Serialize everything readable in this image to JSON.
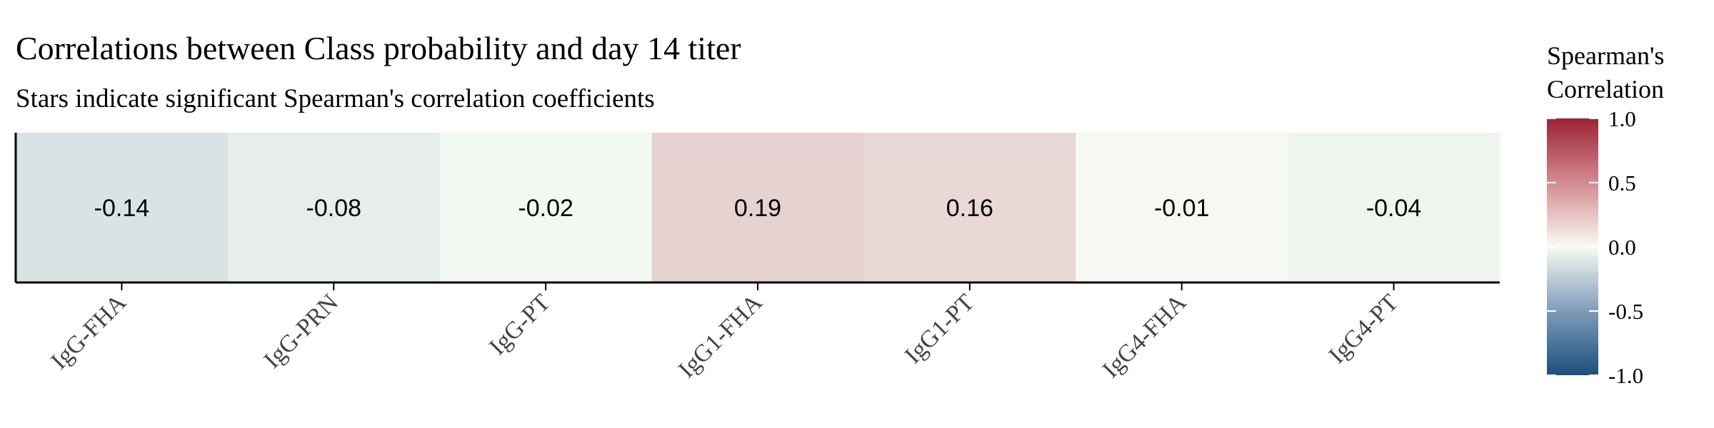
{
  "chart_data": {
    "type": "heatmap",
    "title": "Correlations between Class probability and day 14 titer",
    "subtitle": "Stars indicate significant Spearman's correlation coefficients",
    "categories": [
      "IgG-FHA",
      "IgG-PRN",
      "IgG-PT",
      "IgG1-FHA",
      "IgG1-PT",
      "IgG4-FHA",
      "IgG4-PT"
    ],
    "values": [
      -0.14,
      -0.08,
      -0.02,
      0.19,
      0.16,
      -0.01,
      -0.04
    ],
    "value_labels": [
      "-0.14",
      "-0.08",
      "-0.02",
      "0.19",
      "0.16",
      "-0.01",
      "-0.04"
    ],
    "legend": {
      "title_lines": [
        "Spearman's",
        "Correlation"
      ],
      "range": [
        -1,
        1
      ],
      "ticks": [
        1,
        0.5,
        0,
        -0.5,
        -1
      ],
      "tick_labels": [
        "1.0",
        "0.5",
        "0.0",
        "-0.5",
        "-1.0"
      ],
      "placement": "right"
    },
    "colors": {
      "low": "#1c4f7d",
      "mid": "#f8fbf4",
      "high": "#9b2335"
    }
  }
}
